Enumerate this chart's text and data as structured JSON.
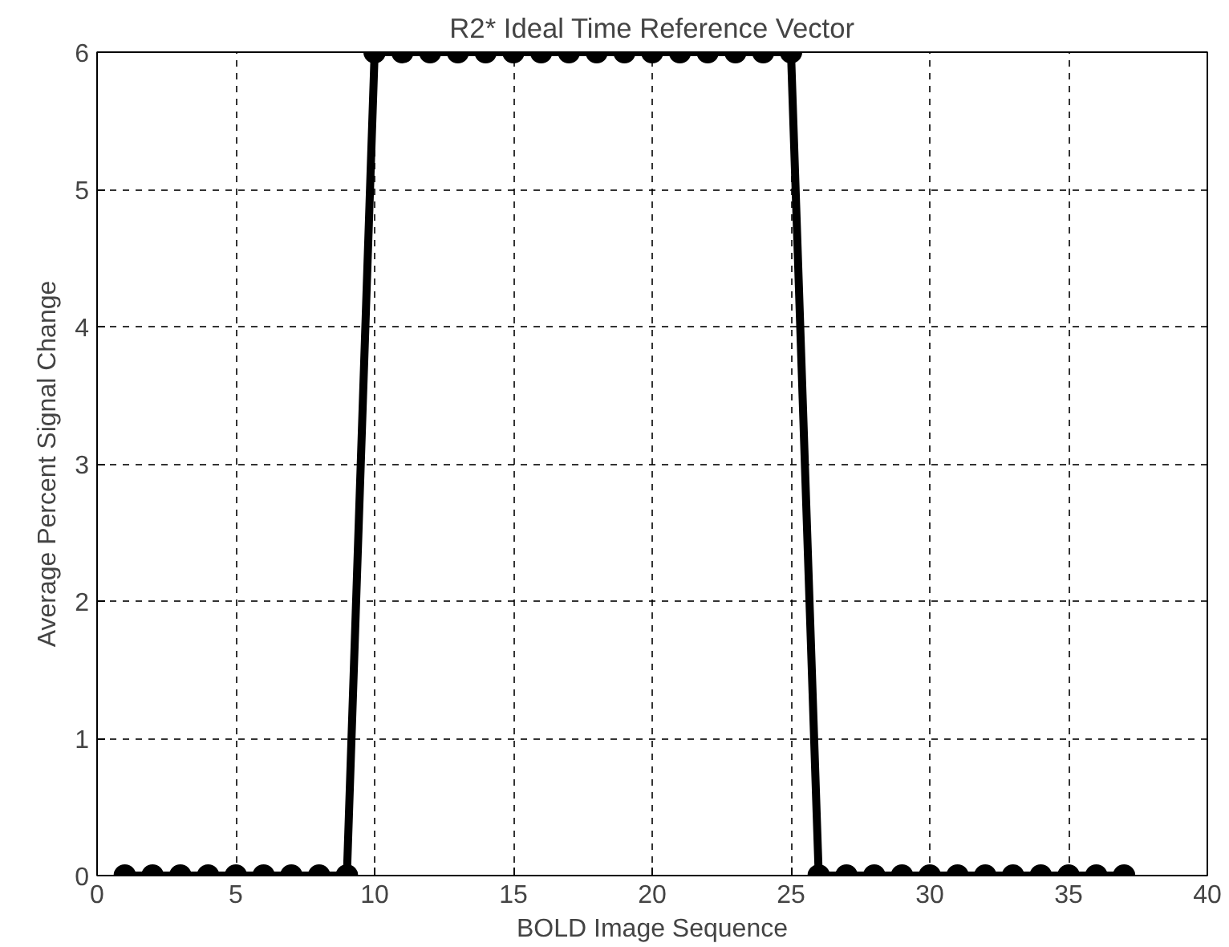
{
  "chart_data": {
    "type": "line",
    "title": "R2* Ideal Time Reference Vector",
    "xlabel": "BOLD Image Sequence",
    "ylabel": "Average Percent Signal Change",
    "x": [
      1,
      2,
      3,
      4,
      5,
      6,
      7,
      8,
      9,
      10,
      11,
      12,
      13,
      14,
      15,
      16,
      17,
      18,
      19,
      20,
      21,
      22,
      23,
      24,
      25,
      26,
      27,
      28,
      29,
      30,
      31,
      32,
      33,
      34,
      35,
      36,
      37
    ],
    "series": [
      {
        "color": "#000000",
        "values": [
          0,
          0,
          0,
          0,
          0,
          0,
          0,
          0,
          0,
          6,
          6,
          6,
          6,
          6,
          6,
          6,
          6,
          6,
          6,
          6,
          6,
          6,
          6,
          6,
          6,
          0,
          0,
          0,
          0,
          0,
          0,
          0,
          0,
          0,
          0,
          0,
          0
        ]
      }
    ],
    "xlim": [
      0,
      40
    ],
    "ylim": [
      0,
      6
    ],
    "xticks": [
      0,
      5,
      10,
      15,
      20,
      25,
      30,
      35,
      40
    ],
    "yticks": [
      0,
      1,
      2,
      3,
      4,
      5,
      6
    ],
    "grid": true,
    "marker": "circle",
    "line_style": "solid"
  }
}
